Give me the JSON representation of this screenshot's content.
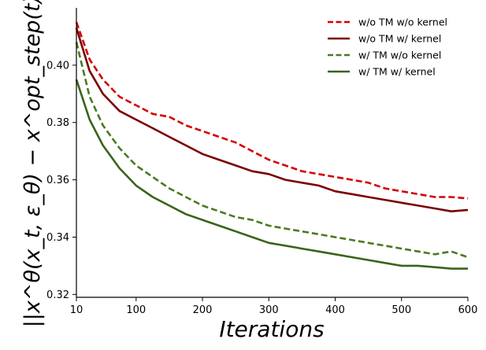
{
  "chart_data": {
    "type": "line",
    "xlabel": "Iterations",
    "ylabel": "||x^θ(x_t, ε_θ) − x^opt_step(t)||",
    "xlim": [
      10,
      600
    ],
    "ylim": [
      0.319,
      0.42
    ],
    "xticks": [
      "10",
      "100",
      "200",
      "300",
      "400",
      "500",
      "600"
    ],
    "yticks": [
      "0.32",
      "0.34",
      "0.36",
      "0.38",
      "0.40"
    ],
    "grid": false,
    "legend_position": "top-right",
    "series": [
      {
        "name": "w/o TM w/o kernel",
        "color": "#d40000",
        "dash": "dashed",
        "x": [
          10,
          30,
          50,
          75,
          100,
          125,
          150,
          175,
          200,
          225,
          250,
          275,
          300,
          325,
          350,
          375,
          400,
          425,
          450,
          475,
          500,
          525,
          550,
          575,
          600
        ],
        "y": [
          0.415,
          0.402,
          0.395,
          0.389,
          0.386,
          0.383,
          0.382,
          0.379,
          0.377,
          0.375,
          0.373,
          0.37,
          0.367,
          0.365,
          0.363,
          0.362,
          0.361,
          0.36,
          0.359,
          0.357,
          0.356,
          0.355,
          0.354,
          0.354,
          0.3535
        ]
      },
      {
        "name": "w/o TM w/ kernel",
        "color": "#7b0000",
        "dash": "solid",
        "x": [
          10,
          30,
          50,
          75,
          100,
          125,
          150,
          175,
          200,
          225,
          250,
          275,
          300,
          325,
          350,
          375,
          400,
          425,
          450,
          475,
          500,
          525,
          550,
          575,
          600
        ],
        "y": [
          0.413,
          0.398,
          0.39,
          0.384,
          0.381,
          0.378,
          0.375,
          0.372,
          0.369,
          0.367,
          0.365,
          0.363,
          0.362,
          0.36,
          0.359,
          0.358,
          0.356,
          0.355,
          0.354,
          0.353,
          0.352,
          0.351,
          0.35,
          0.349,
          0.3495
        ]
      },
      {
        "name": "w/ TM w/o kernel",
        "color": "#4a7a22",
        "dash": "dashed",
        "x": [
          10,
          30,
          50,
          75,
          100,
          125,
          150,
          175,
          200,
          225,
          250,
          275,
          300,
          325,
          350,
          375,
          400,
          425,
          450,
          475,
          500,
          525,
          550,
          575,
          600
        ],
        "y": [
          0.408,
          0.389,
          0.379,
          0.371,
          0.365,
          0.361,
          0.357,
          0.354,
          0.351,
          0.349,
          0.347,
          0.346,
          0.344,
          0.343,
          0.342,
          0.341,
          0.34,
          0.339,
          0.338,
          0.337,
          0.336,
          0.335,
          0.334,
          0.335,
          0.333
        ]
      },
      {
        "name": "w/ TM w/ kernel",
        "color": "#3a6419",
        "dash": "solid",
        "x": [
          10,
          30,
          50,
          75,
          100,
          125,
          150,
          175,
          200,
          225,
          250,
          275,
          300,
          325,
          350,
          375,
          400,
          425,
          450,
          475,
          500,
          525,
          550,
          575,
          600
        ],
        "y": [
          0.395,
          0.381,
          0.372,
          0.364,
          0.358,
          0.354,
          0.351,
          0.348,
          0.346,
          0.344,
          0.342,
          0.34,
          0.338,
          0.337,
          0.336,
          0.335,
          0.334,
          0.333,
          0.332,
          0.331,
          0.33,
          0.33,
          0.3295,
          0.329,
          0.329
        ]
      }
    ]
  }
}
